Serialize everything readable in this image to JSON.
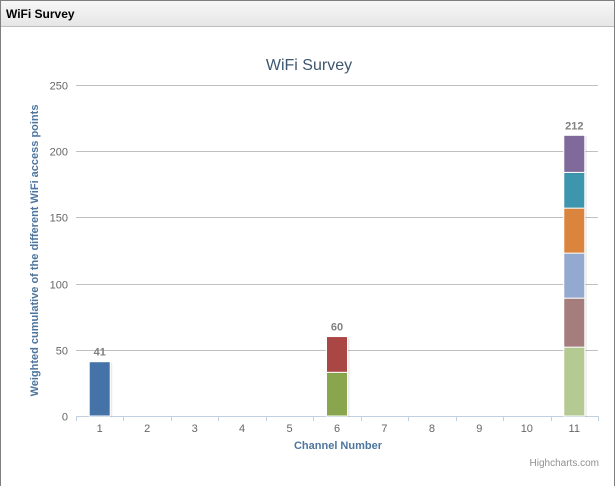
{
  "window": {
    "title": "WiFi Survey"
  },
  "chart_data": {
    "type": "bar",
    "stacked": true,
    "title": "WiFi Survey",
    "xlabel": "Channel Number",
    "ylabel": "Weighted cumulative of the different WiFi access points",
    "categories": [
      "1",
      "2",
      "3",
      "4",
      "5",
      "6",
      "7",
      "8",
      "9",
      "10",
      "11"
    ],
    "ylim": [
      0,
      250
    ],
    "yticks": [
      0,
      50,
      100,
      150,
      200,
      250
    ],
    "ytick_labels": [
      "0",
      "50",
      "100",
      "150",
      "200",
      "250"
    ],
    "grid": true,
    "legend": "none",
    "series": [
      {
        "color": "#4572a7",
        "values": [
          41,
          0,
          0,
          0,
          0,
          0,
          0,
          0,
          0,
          0,
          0
        ]
      },
      {
        "color": "#89a54e",
        "values": [
          0,
          0,
          0,
          0,
          0,
          33,
          0,
          0,
          0,
          0,
          0
        ]
      },
      {
        "color": "#aa4643",
        "values": [
          0,
          0,
          0,
          0,
          0,
          27,
          0,
          0,
          0,
          0,
          0
        ]
      },
      {
        "color": "#b5ca92",
        "values": [
          0,
          0,
          0,
          0,
          0,
          0,
          0,
          0,
          0,
          0,
          52
        ]
      },
      {
        "color": "#a47d7c",
        "values": [
          0,
          0,
          0,
          0,
          0,
          0,
          0,
          0,
          0,
          0,
          37
        ]
      },
      {
        "color": "#93a9cf",
        "values": [
          0,
          0,
          0,
          0,
          0,
          0,
          0,
          0,
          0,
          0,
          34
        ]
      },
      {
        "color": "#db843d",
        "values": [
          0,
          0,
          0,
          0,
          0,
          0,
          0,
          0,
          0,
          0,
          34
        ]
      },
      {
        "color": "#3d96ae",
        "values": [
          0,
          0,
          0,
          0,
          0,
          0,
          0,
          0,
          0,
          0,
          27
        ]
      },
      {
        "color": "#80699b",
        "values": [
          0,
          0,
          0,
          0,
          0,
          0,
          0,
          0,
          0,
          0,
          28
        ]
      }
    ],
    "totals": [
      {
        "category": "1",
        "label": "41"
      },
      {
        "category": "6",
        "label": "60"
      },
      {
        "category": "11",
        "label": "212"
      }
    ],
    "credit": "Highcharts.com",
    "colors": {
      "title": "#3e576f",
      "axis_title": "#4d759e",
      "tick_label": "#666666",
      "grid": "#c0c0c0",
      "axis_line": "#c0d0e0",
      "total_label": "#808080",
      "credit": "#909090"
    }
  }
}
